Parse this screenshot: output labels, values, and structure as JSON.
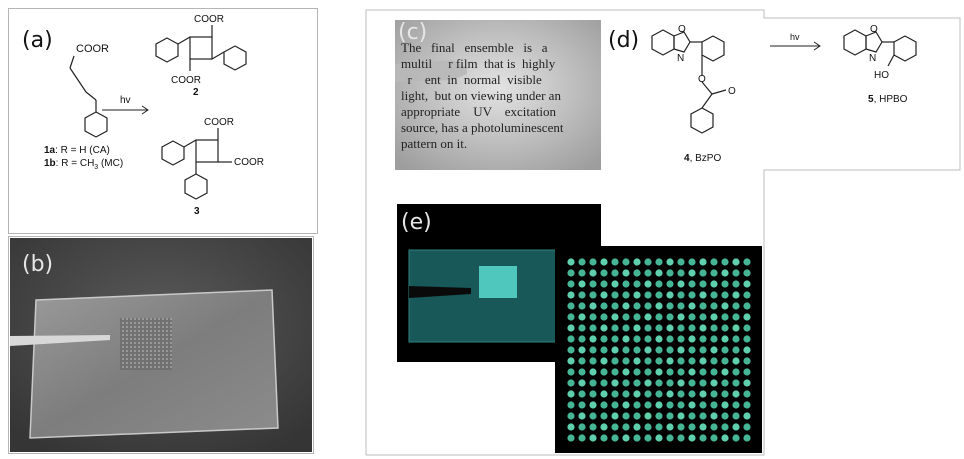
{
  "panels": {
    "a": {
      "label": "(a)",
      "reagent_group": "COOR",
      "arrow_label": "hv",
      "product_top_groups": [
        "COOR",
        "COOR"
      ],
      "product_top_number": "2",
      "product_bottom_groups": [
        "COOR",
        "COOR"
      ],
      "product_bottom_number": "3",
      "legend_1a_id": "1a",
      "legend_1a_text": ": R = H (CA)",
      "legend_1b_id": "1b",
      "legend_1b_text": ": R = CH",
      "legend_1b_sub": "3",
      "legend_1b_tail": " (MC)"
    },
    "b": {
      "label": "(b)"
    },
    "c": {
      "label": "(c)",
      "text_lines": [
        "The   final   ensemble   is   a",
        "multil     r film  that is  highly",
        "  r    ent  in  normal  visible",
        "light,  but on viewing under an",
        "appropriate    UV    excitation",
        "source, has a photoluminescent",
        "pattern on it."
      ]
    },
    "d": {
      "label": "(d)",
      "arrow_label": "hv",
      "compound_4_number": "4",
      "compound_4_name": ", BzPO",
      "compound_5_number": "5",
      "compound_5_name": ", HPBO",
      "atom_O": "O",
      "atom_N": "N",
      "atom_HO": "HO"
    },
    "e": {
      "label": "(e)"
    }
  }
}
